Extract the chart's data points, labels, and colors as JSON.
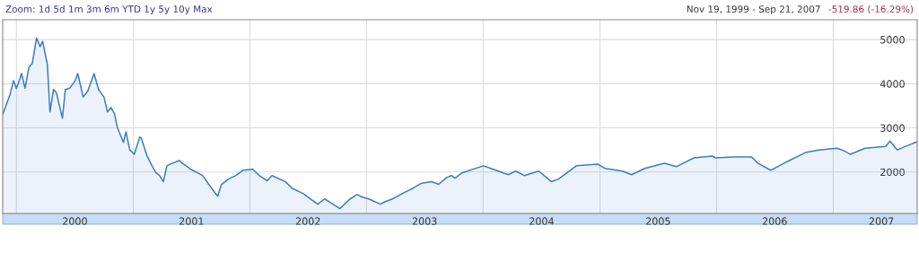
{
  "chart_data": {
    "type": "area",
    "annotations": [
      "Zoom: 1d 5d 1m 3m 6m YTD 1y 5y 10y Max",
      "Nov 19, 1999 - Sep 21, 2007",
      "-519.86 (-16.29%)"
    ],
    "x": [
      "1999-11-19",
      "1999-12-12",
      "1999-12-23",
      "2000-01-01",
      "2000-01-17",
      "2000-01-28",
      "2000-02-09",
      "2000-02-20",
      "2000-03-04",
      "2000-03-15",
      "2000-03-23",
      "2000-04-07",
      "2000-04-15",
      "2000-04-26",
      "2000-05-05",
      "2000-05-24",
      "2000-06-02",
      "2000-06-16",
      "2000-07-03",
      "2000-07-11",
      "2000-07-28",
      "2000-08-11",
      "2000-08-31",
      "2000-09-14",
      "2000-10-01",
      "2000-10-12",
      "2000-10-23",
      "2000-11-03",
      "2000-11-12",
      "2000-12-01",
      "2000-12-09",
      "2000-12-21",
      "2001-01-04",
      "2001-01-21",
      "2001-01-26",
      "2001-02-12",
      "2001-03-02",
      "2001-03-13",
      "2001-03-24",
      "2001-04-05",
      "2001-04-16",
      "2001-04-27",
      "2001-05-25",
      "2001-06-03",
      "2001-06-19",
      "2001-06-30",
      "2001-08-06",
      "2001-08-25",
      "2001-09-22",
      "2001-10-04",
      "2001-10-26",
      "2001-11-18",
      "2001-12-10",
      "2002-01-10",
      "2002-01-30",
      "2002-02-24",
      "2002-03-11",
      "2002-04-22",
      "2002-05-14",
      "2002-06-17",
      "2002-08-01",
      "2002-08-23",
      "2002-09-09",
      "2002-10-10",
      "2002-11-07",
      "2002-12-02",
      "2002-12-19",
      "2003-01-08",
      "2003-02-13",
      "2003-03-01",
      "2003-03-23",
      "2003-04-28",
      "2003-05-26",
      "2003-06-20",
      "2003-07-23",
      "2003-08-15",
      "2003-09-10",
      "2003-09-24",
      "2003-10-05",
      "2003-10-27",
      "2004-01-02",
      "2004-02-02",
      "2004-03-20",
      "2004-04-12",
      "2004-05-09",
      "2004-06-23",
      "2004-08-02",
      "2004-08-24",
      "2004-10-19",
      "2004-12-25",
      "2005-01-17",
      "2005-03-12",
      "2005-04-10",
      "2005-05-21",
      "2005-07-22",
      "2005-08-28",
      "2005-10-22",
      "2005-12-18",
      "2005-12-29",
      "2006-02-20",
      "2006-04-21",
      "2006-05-10",
      "2006-06-19",
      "2006-06-30",
      "2006-08-11",
      "2006-10-06",
      "2006-11-17",
      "2007-01-13",
      "2007-02-04",
      "2007-02-24",
      "2007-04-11",
      "2007-06-14",
      "2007-06-28",
      "2007-07-20",
      "2007-09-21"
    ],
    "series": [
      {
        "color": "#3d7cc0",
        "values": [
          3300,
          3760,
          4070,
          3890,
          4230,
          3900,
          4370,
          4470,
          5040,
          4840,
          4960,
          4430,
          3360,
          3870,
          3800,
          3220,
          3870,
          3900,
          4070,
          4230,
          3700,
          3830,
          4230,
          3870,
          3700,
          3360,
          3460,
          3320,
          3010,
          2670,
          2910,
          2500,
          2400,
          2790,
          2770,
          2380,
          2120,
          1980,
          1920,
          1780,
          2140,
          2180,
          2260,
          2200,
          2120,
          2060,
          1920,
          1720,
          1450,
          1720,
          1840,
          1920,
          2040,
          2060,
          1920,
          1800,
          1920,
          1780,
          1630,
          1510,
          1270,
          1390,
          1310,
          1170,
          1370,
          1490,
          1430,
          1390,
          1270,
          1330,
          1390,
          1530,
          1630,
          1740,
          1780,
          1720,
          1880,
          1920,
          1860,
          1980,
          2140,
          2060,
          1940,
          2020,
          1920,
          2020,
          1780,
          1840,
          2140,
          2180,
          2080,
          2020,
          1940,
          2080,
          2200,
          2120,
          2320,
          2360,
          2320,
          2340,
          2340,
          2200,
          2040,
          2080,
          2240,
          2440,
          2500,
          2540,
          2480,
          2400,
          2540,
          2580,
          2700,
          2500,
          2690
        ]
      }
    ],
    "xlim": [
      "1999-11-19",
      "2007-09-21"
    ],
    "xticks": [
      {
        "value": "2000-01-01",
        "label": null
      },
      {
        "value": "2000-07-02",
        "label": "2000"
      },
      {
        "value": "2001-01-01",
        "label": null
      },
      {
        "value": "2001-07-02",
        "label": "2001"
      },
      {
        "value": "2002-01-01",
        "label": null
      },
      {
        "value": "2002-07-02",
        "label": "2002"
      },
      {
        "value": "2003-01-01",
        "label": null
      },
      {
        "value": "2003-07-02",
        "label": "2003"
      },
      {
        "value": "2004-01-01",
        "label": null
      },
      {
        "value": "2004-07-02",
        "label": "2004"
      },
      {
        "value": "2005-01-01",
        "label": null
      },
      {
        "value": "2005-07-02",
        "label": "2005"
      },
      {
        "value": "2006-01-01",
        "label": null
      },
      {
        "value": "2006-07-02",
        "label": "2006"
      },
      {
        "value": "2007-01-01",
        "label": null
      },
      {
        "value": "2007-06-01",
        "label": "2007"
      }
    ],
    "ylim": [
      1060,
      5450
    ],
    "yticks": [
      2000,
      3000,
      4000,
      5000
    ],
    "grid": true
  }
}
